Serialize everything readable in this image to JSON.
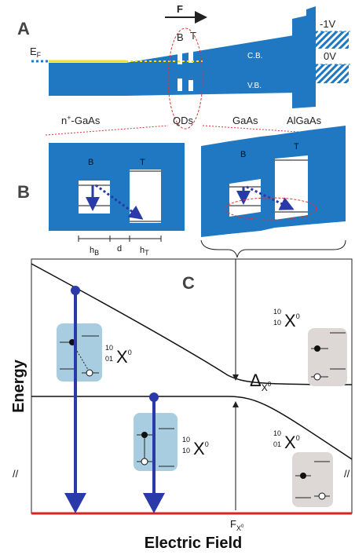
{
  "panel_a": {
    "label": "A",
    "field": "F",
    "fermi": {
      "main": "E",
      "sub": "F"
    },
    "dots": [
      "B",
      "T"
    ],
    "voltages": [
      "-1V",
      "0V"
    ],
    "bands": [
      "C.B.",
      "V.B."
    ],
    "contact": {
      "main": "n",
      "sup": "+",
      "rest": "-GaAs"
    },
    "regions": [
      "QDs",
      "GaAs",
      "AlGaAs"
    ]
  },
  "panel_b": {
    "label": "B",
    "left_dots": [
      "B",
      "T"
    ],
    "right_dots": [
      "B",
      "T"
    ],
    "dims": [
      {
        "main": "h",
        "sub": "B"
      },
      {
        "main": "d"
      },
      {
        "main": "h",
        "sub": "T"
      }
    ]
  },
  "panel_c": {
    "label": "C",
    "y_axis": "Energy",
    "x_axis": "Electric Field",
    "field_mark": {
      "main": "F",
      "sub": "X",
      "subsup": "0"
    },
    "splitting": {
      "main": "Δ",
      "sub": "X",
      "subsup": "0"
    },
    "states": [
      {
        "top": "10",
        "bottom": "01",
        "main": "X",
        "sup": "0"
      },
      {
        "top": "10",
        "bottom": "10",
        "main": "X",
        "sup": "0"
      },
      {
        "top": "10",
        "bottom": "10",
        "main": "X",
        "sup": "0"
      },
      {
        "top": "10",
        "bottom": "01",
        "main": "X",
        "sup": "0"
      }
    ]
  }
}
